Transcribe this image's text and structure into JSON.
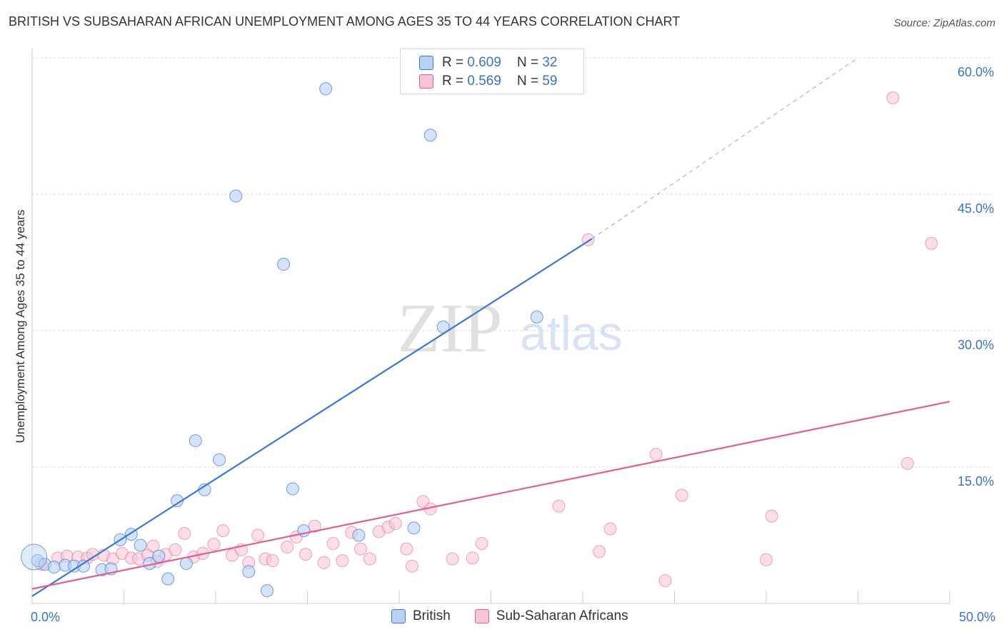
{
  "title": "BRITISH VS SUBSAHARAN AFRICAN UNEMPLOYMENT AMONG AGES 35 TO 44 YEARS CORRELATION CHART",
  "source": "Source: ZipAtlas.com",
  "watermark": {
    "zip": "ZIP",
    "atlas": "atlas"
  },
  "legend": {
    "british": {
      "r_label": "R =",
      "r_value": "0.609",
      "n_label": "N =",
      "n_value": "32"
    },
    "africans": {
      "r_label": "R =",
      "r_value": "0.569",
      "n_label": "N =",
      "n_value": "59"
    }
  },
  "colors": {
    "british": "#3a78d6",
    "british_fill": "#b9d1f3",
    "africans": "#e0608e",
    "africans_fill": "#f8c3d6",
    "label_blue": "#3b73c8"
  },
  "chart_data": {
    "type": "scatter",
    "xlabel": "",
    "ylabel": "Unemployment Among Ages 35 to 44 years",
    "xlim": [
      0,
      50
    ],
    "ylim": [
      0,
      60
    ],
    "x_tick_labels": [
      "0.0%",
      "50.0%"
    ],
    "y_ticks": [
      15,
      30,
      45,
      60
    ],
    "y_tick_labels": [
      "15.0%",
      "30.0%",
      "45.0%",
      "60.0%"
    ],
    "grid": true,
    "series": [
      {
        "name": "British",
        "points": [
          [
            0.3,
            4.7
          ],
          [
            0.7,
            4.3
          ],
          [
            1.2,
            4.0
          ],
          [
            1.8,
            4.2
          ],
          [
            2.3,
            4.1
          ],
          [
            2.8,
            4.1
          ],
          [
            3.8,
            3.7
          ],
          [
            4.3,
            3.8
          ],
          [
            4.8,
            7.0
          ],
          [
            5.4,
            7.6
          ],
          [
            5.9,
            6.4
          ],
          [
            6.4,
            4.4
          ],
          [
            6.9,
            5.2
          ],
          [
            7.4,
            2.7
          ],
          [
            7.9,
            11.3
          ],
          [
            8.4,
            4.4
          ],
          [
            8.9,
            17.9
          ],
          [
            9.4,
            12.5
          ],
          [
            10.2,
            15.8
          ],
          [
            11.1,
            44.8
          ],
          [
            11.8,
            3.5
          ],
          [
            12.8,
            1.4
          ],
          [
            13.7,
            37.3
          ],
          [
            14.2,
            12.6
          ],
          [
            14.8,
            8.0
          ],
          [
            16.0,
            56.6
          ],
          [
            17.8,
            7.5
          ],
          [
            20.8,
            8.3
          ],
          [
            21.7,
            51.5
          ],
          [
            22.4,
            30.4
          ],
          [
            27.5,
            31.5
          ],
          [
            0.1,
            5.1
          ]
        ],
        "fit_line": [
          [
            0,
            0.8
          ],
          [
            30.5,
            40.1
          ]
        ],
        "fit_extension": [
          [
            30.5,
            40.1
          ],
          [
            45,
            60
          ]
        ]
      },
      {
        "name": "Sub-Saharan Africans",
        "points": [
          [
            0.5,
            4.3
          ],
          [
            1.4,
            5.0
          ],
          [
            1.9,
            5.2
          ],
          [
            2.5,
            5.1
          ],
          [
            3.0,
            5.0
          ],
          [
            3.3,
            5.4
          ],
          [
            3.9,
            5.3
          ],
          [
            4.4,
            4.9
          ],
          [
            4.9,
            5.5
          ],
          [
            5.4,
            5.0
          ],
          [
            5.8,
            4.9
          ],
          [
            6.3,
            5.3
          ],
          [
            6.6,
            6.3
          ],
          [
            6.8,
            4.6
          ],
          [
            7.3,
            5.4
          ],
          [
            7.8,
            5.9
          ],
          [
            8.3,
            7.7
          ],
          [
            8.8,
            5.1
          ],
          [
            9.3,
            5.5
          ],
          [
            9.9,
            6.5
          ],
          [
            10.4,
            8.0
          ],
          [
            10.9,
            5.3
          ],
          [
            11.4,
            5.9
          ],
          [
            11.8,
            4.5
          ],
          [
            12.3,
            7.5
          ],
          [
            12.7,
            4.9
          ],
          [
            13.1,
            4.7
          ],
          [
            13.9,
            6.2
          ],
          [
            14.4,
            7.3
          ],
          [
            14.9,
            5.4
          ],
          [
            15.4,
            8.5
          ],
          [
            15.9,
            4.5
          ],
          [
            16.4,
            6.6
          ],
          [
            16.9,
            4.7
          ],
          [
            17.4,
            7.8
          ],
          [
            17.9,
            6.0
          ],
          [
            18.4,
            4.9
          ],
          [
            18.9,
            7.9
          ],
          [
            19.4,
            8.4
          ],
          [
            19.8,
            8.8
          ],
          [
            20.4,
            6.0
          ],
          [
            20.7,
            4.1
          ],
          [
            21.3,
            11.2
          ],
          [
            21.7,
            10.4
          ],
          [
            22.9,
            4.9
          ],
          [
            24.0,
            5.0
          ],
          [
            24.5,
            6.6
          ],
          [
            28.7,
            10.7
          ],
          [
            30.3,
            40.0
          ],
          [
            30.9,
            5.7
          ],
          [
            31.5,
            8.2
          ],
          [
            34.0,
            16.4
          ],
          [
            34.5,
            2.5
          ],
          [
            35.4,
            11.9
          ],
          [
            40.0,
            4.8
          ],
          [
            40.3,
            9.6
          ],
          [
            46.9,
            55.6
          ],
          [
            47.7,
            15.4
          ],
          [
            49.0,
            39.6
          ]
        ],
        "fit_line": [
          [
            0,
            1.6
          ],
          [
            50,
            22.2
          ]
        ]
      }
    ]
  }
}
